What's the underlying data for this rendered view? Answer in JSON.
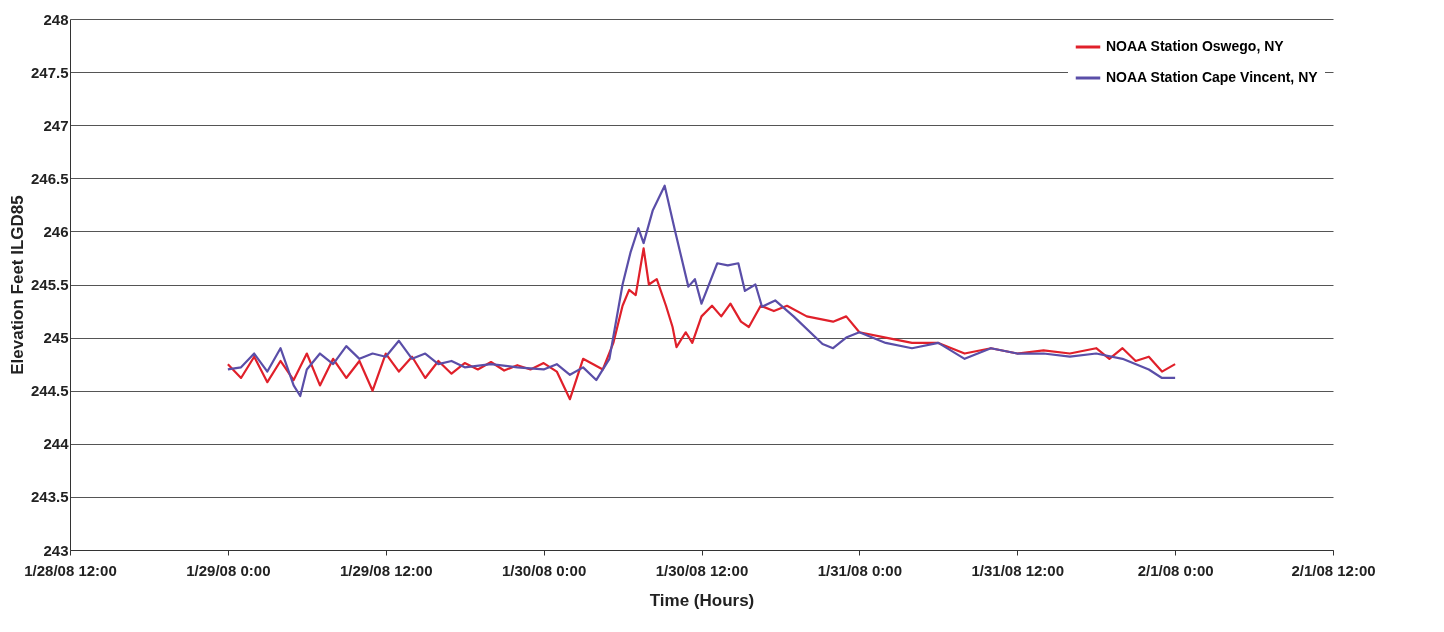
{
  "chart_data": {
    "type": "line",
    "xlabel": "Time (Hours)",
    "ylabel": "Elevation Feet ILGD85",
    "xlim": [
      "--01-28T12:00",
      "--02-01T12:00"
    ],
    "xticks": [
      {
        "value": "--01-28T12:00",
        "label": "1/28/08 12:00"
      },
      {
        "value": "--01-29T00:00",
        "label": "1/29/08 0:00"
      },
      {
        "value": "--01-29T12:00",
        "label": "1/29/08 12:00"
      },
      {
        "value": "--01-30T00:00",
        "label": "1/30/08 0:00"
      },
      {
        "value": "--01-30T12:00",
        "label": "1/30/08 12:00"
      },
      {
        "value": "--01-31T00:00",
        "label": "1/31/08 0:00"
      },
      {
        "value": "--01-31T12:00",
        "label": "1/31/08 12:00"
      },
      {
        "value": "--02-01T00:00",
        "label": "2/1/08 0:00"
      },
      {
        "value": "--02-01T12:00",
        "label": "2/1/08 12:00"
      }
    ],
    "ylim": [
      243,
      248
    ],
    "yticks": [
      243,
      243.5,
      244,
      244.5,
      245,
      245.5,
      246,
      246.5,
      247,
      247.5,
      248
    ],
    "grid": "y",
    "legend": "top right",
    "marker": "none",
    "line_style": "solid",
    "series": [
      {
        "name": "NOAA Station Oswego, NY",
        "color": "#e0202a",
        "x": [
          "--01-29T00:00",
          "--01-29T01:00",
          "--01-29T02:00",
          "--01-29T03:00",
          "--01-29T04:00",
          "--01-29T05:00",
          "--01-29T06:00",
          "--01-29T07:00",
          "--01-29T08:00",
          "--01-29T09:00",
          "--01-29T10:00",
          "--01-29T11:00",
          "--01-29T12:00",
          "--01-29T13:00",
          "--01-29T14:00",
          "--01-29T15:00",
          "--01-29T16:00",
          "--01-29T17:00",
          "--01-29T18:00",
          "--01-29T19:00",
          "--01-29T20:00",
          "--01-29T21:00",
          "--01-29T22:00",
          "--01-29T23:00",
          "--01-30T00:00",
          "--01-30T01:00",
          "--01-30T02:00",
          "--01-30T03:00",
          "--01-30T04:30",
          "--01-30T05:18",
          "--01-30T06:00",
          "--01-30T06:30",
          "--01-30T07:00",
          "--01-30T07:36",
          "--01-30T08:00",
          "--01-30T08:36",
          "--01-30T09:18",
          "--01-30T09:48",
          "--01-30T10:06",
          "--01-30T10:48",
          "--01-30T11:18",
          "--01-30T12:00",
          "--01-30T12:48",
          "--01-30T13:30",
          "--01-30T14:12",
          "--01-30T15:00",
          "--01-30T15:36",
          "--01-30T16:30",
          "--01-30T17:30",
          "--01-30T18:30",
          "--01-30T20:00",
          "--01-30T22:00",
          "--01-30T23:00",
          "--01-31T00:00",
          "--01-31T02:00",
          "--01-31T04:00",
          "--01-31T06:00",
          "--01-31T08:00",
          "--01-31T10:00",
          "--01-31T12:00",
          "--01-31T14:00",
          "--01-31T16:00",
          "--01-31T18:00",
          "--01-31T19:00",
          "--01-31T20:00",
          "--01-31T21:00",
          "--01-31T22:00",
          "--01-31T23:00",
          "--02-01T00:00"
        ],
        "values": [
          244.75,
          244.62,
          244.82,
          244.58,
          244.78,
          244.6,
          244.85,
          244.55,
          244.8,
          244.62,
          244.78,
          244.5,
          244.85,
          244.68,
          244.82,
          244.62,
          244.78,
          244.66,
          244.76,
          244.7,
          244.77,
          244.69,
          244.74,
          244.7,
          244.76,
          244.68,
          244.42,
          244.8,
          244.7,
          244.95,
          245.3,
          245.45,
          245.4,
          245.84,
          245.5,
          245.55,
          245.3,
          245.1,
          244.91,
          245.05,
          244.95,
          245.2,
          245.3,
          245.2,
          245.32,
          245.15,
          245.1,
          245.3,
          245.25,
          245.3,
          245.2,
          245.15,
          245.2,
          245.05,
          245.0,
          244.95,
          244.95,
          244.85,
          244.9,
          244.85,
          244.88,
          244.85,
          244.9,
          244.8,
          244.9,
          244.78,
          244.82,
          244.68,
          244.75
        ]
      },
      {
        "name": "NOAA Station Cape Vincent, NY",
        "color": "#5a4ea8",
        "x": [
          "--01-29T00:00",
          "--01-29T01:00",
          "--01-29T02:00",
          "--01-29T03:00",
          "--01-29T04:00",
          "--01-29T05:00",
          "--01-29T05:30",
          "--01-29T06:00",
          "--01-29T07:00",
          "--01-29T08:00",
          "--01-29T09:00",
          "--01-29T10:00",
          "--01-29T11:00",
          "--01-29T12:00",
          "--01-29T13:00",
          "--01-29T14:00",
          "--01-29T15:00",
          "--01-29T16:00",
          "--01-29T17:00",
          "--01-29T18:00",
          "--01-29T20:00",
          "--01-29T22:00",
          "--01-30T00:00",
          "--01-30T01:00",
          "--01-30T02:00",
          "--01-30T03:00",
          "--01-30T04:00",
          "--01-30T05:00",
          "--01-30T06:00",
          "--01-30T06:36",
          "--01-30T07:12",
          "--01-30T07:36",
          "--01-30T08:18",
          "--01-30T09:12",
          "--01-30T10:00",
          "--01-30T11:00",
          "--01-30T11:30",
          "--01-30T12:00",
          "--01-30T13:12",
          "--01-30T14:00",
          "--01-30T14:48",
          "--01-30T15:18",
          "--01-30T16:06",
          "--01-30T16:36",
          "--01-30T17:36",
          "--01-30T19:00",
          "--01-30T21:12",
          "--01-30T22:00",
          "--01-30T23:00",
          "--01-31T00:00",
          "--01-31T02:00",
          "--01-31T04:00",
          "--01-31T06:00",
          "--01-31T08:00",
          "--01-31T10:00",
          "--01-31T12:00",
          "--01-31T14:00",
          "--01-31T16:00",
          "--01-31T18:00",
          "--01-31T20:00",
          "--01-31T22:00",
          "--01-31T23:00",
          "--02-01T00:00"
        ],
        "values": [
          244.7,
          244.72,
          244.85,
          244.68,
          244.9,
          244.55,
          244.45,
          244.7,
          244.85,
          244.75,
          244.92,
          244.8,
          244.85,
          244.82,
          244.97,
          244.8,
          244.85,
          244.75,
          244.78,
          244.72,
          244.75,
          244.72,
          244.7,
          244.75,
          244.65,
          244.72,
          244.6,
          244.8,
          245.5,
          245.8,
          246.03,
          245.89,
          246.2,
          246.43,
          246.0,
          245.48,
          245.55,
          245.32,
          245.7,
          245.68,
          245.7,
          245.44,
          245.5,
          245.29,
          245.35,
          245.2,
          244.94,
          244.9,
          245.0,
          245.05,
          244.95,
          244.9,
          244.95,
          244.8,
          244.9,
          244.85,
          244.85,
          244.82,
          244.85,
          244.8,
          244.7,
          244.62,
          244.62
        ]
      }
    ]
  }
}
